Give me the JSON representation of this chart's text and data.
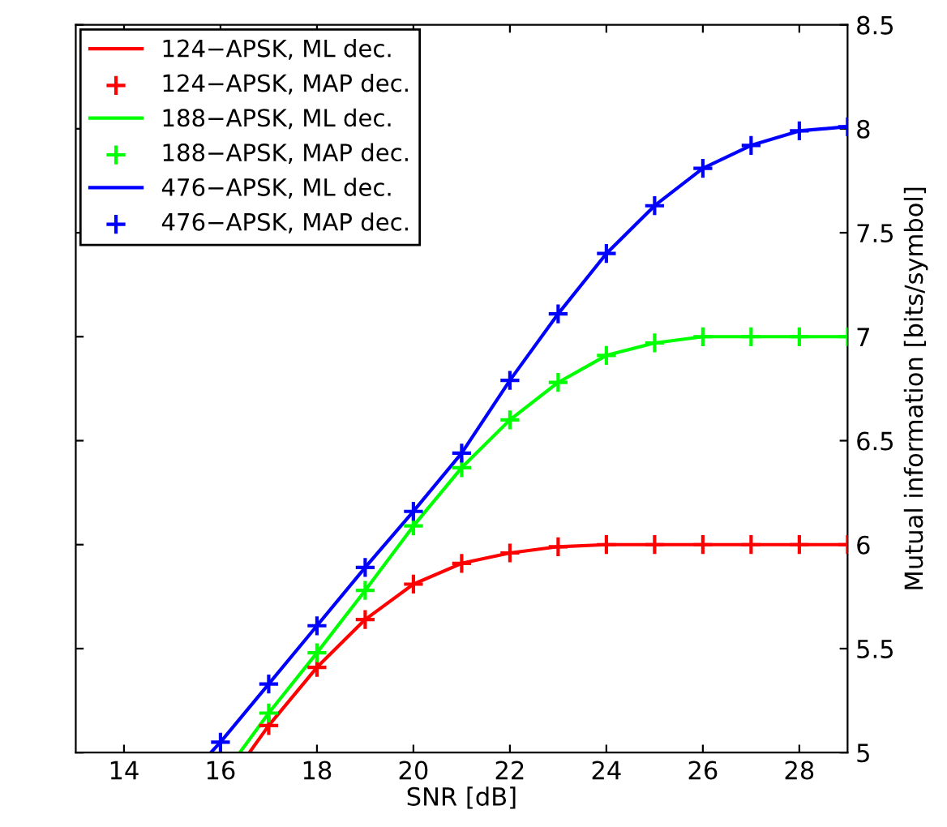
{
  "chart_data": {
    "type": "line",
    "xlabel": "SNR [dB]",
    "ylabel": "Mutual information [bits/symbol]",
    "xlim": [
      13,
      29
    ],
    "ylim": [
      5,
      8.5
    ],
    "xticks": [
      14,
      16,
      18,
      20,
      22,
      24,
      26,
      28
    ],
    "yticks": [
      5,
      5.5,
      6,
      6.5,
      7,
      7.5,
      8,
      8.5
    ],
    "grid": false,
    "legend": "top left",
    "series": [
      {
        "name": "124−APSK, ML dec.",
        "color": "#ff0000",
        "marker": "none",
        "line_style": "solid",
        "x": [
          16.6,
          17,
          18,
          19,
          20,
          21,
          22,
          23,
          24,
          25,
          26,
          27,
          28,
          29
        ],
        "values": [
          5.0,
          5.13,
          5.41,
          5.64,
          5.81,
          5.91,
          5.96,
          5.99,
          6.0,
          6.0,
          6.0,
          6.0,
          6.0,
          6.0
        ]
      },
      {
        "name": "124−APSK, MAP dec.",
        "color": "#ff0000",
        "type": "scatter",
        "marker": "cross",
        "x": [
          17,
          18,
          19,
          20,
          21,
          22,
          23,
          24,
          25,
          26,
          27,
          28,
          29
        ],
        "values": [
          5.13,
          5.41,
          5.64,
          5.81,
          5.91,
          5.96,
          5.99,
          6.0,
          6.0,
          6.0,
          6.0,
          6.0,
          6.0
        ]
      },
      {
        "name": "188−APSK, ML dec.",
        "color": "#00ff00",
        "marker": "none",
        "line_style": "solid",
        "x": [
          16.4,
          17,
          18,
          19,
          20,
          21,
          22,
          23,
          24,
          25,
          26,
          27,
          28,
          29
        ],
        "values": [
          5.0,
          5.19,
          5.48,
          5.78,
          6.09,
          6.37,
          6.6,
          6.78,
          6.91,
          6.97,
          7.0,
          7.0,
          7.0,
          7.0
        ]
      },
      {
        "name": "188−APSK, MAP dec.",
        "color": "#00ff00",
        "type": "scatter",
        "marker": "cross",
        "x": [
          17,
          18,
          19,
          20,
          21,
          22,
          23,
          24,
          25,
          26,
          27,
          28,
          29
        ],
        "values": [
          5.19,
          5.48,
          5.78,
          6.09,
          6.37,
          6.6,
          6.78,
          6.91,
          6.97,
          7.0,
          7.0,
          7.0,
          7.0
        ]
      },
      {
        "name": "476−APSK, ML dec.",
        "color": "#0000ff",
        "marker": "none",
        "line_style": "solid",
        "x": [
          15.8,
          16,
          17,
          18,
          19,
          20,
          21,
          22,
          23,
          24,
          25,
          26,
          27,
          28,
          29
        ],
        "values": [
          5.0,
          5.05,
          5.33,
          5.61,
          5.89,
          6.16,
          6.44,
          6.79,
          7.11,
          7.4,
          7.63,
          7.81,
          7.92,
          7.99,
          8.01
        ]
      },
      {
        "name": "476−APSK, MAP dec.",
        "color": "#0000ff",
        "type": "scatter",
        "marker": "cross",
        "x": [
          16,
          17,
          18,
          19,
          20,
          21,
          22,
          23,
          24,
          25,
          26,
          27,
          28,
          29
        ],
        "values": [
          5.05,
          5.33,
          5.61,
          5.89,
          6.16,
          6.44,
          6.79,
          7.11,
          7.4,
          7.63,
          7.81,
          7.92,
          7.99,
          8.01
        ]
      }
    ]
  }
}
